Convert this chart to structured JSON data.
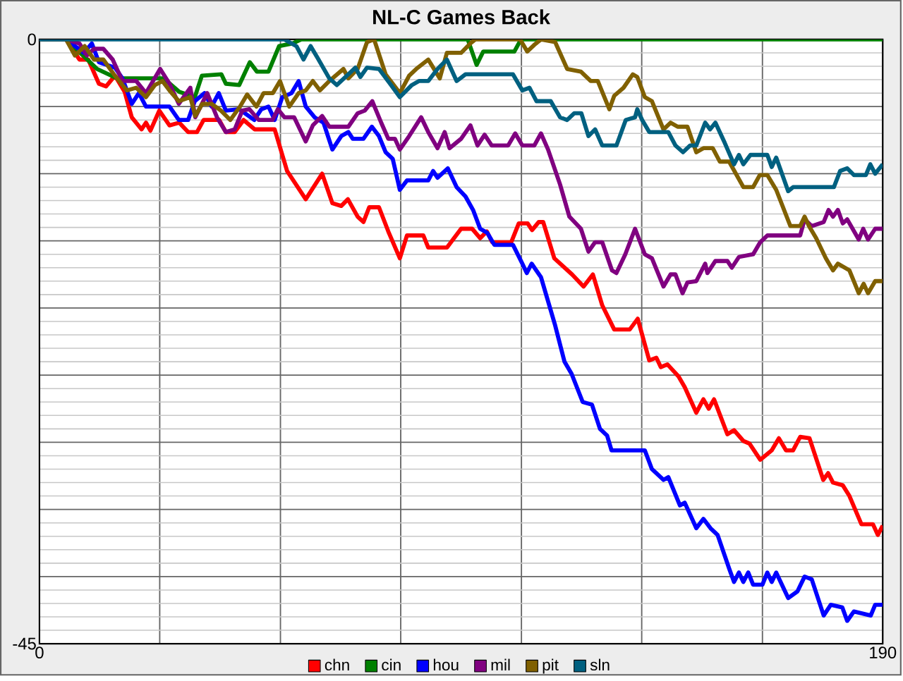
{
  "chart_data": {
    "type": "line",
    "title": "NL-C Games Back",
    "xlim": [
      0,
      190
    ],
    "ylim": [
      -45,
      0
    ],
    "xticks": [
      0,
      {
        "value": 27.1,
        "label": null
      },
      {
        "value": 54.3,
        "label": null
      },
      {
        "value": 81.4,
        "label": null
      },
      {
        "value": 108.6,
        "label": null
      },
      {
        "value": 135.7,
        "label": null
      },
      {
        "value": 162.9,
        "label": null
      },
      190
    ],
    "yticks": [
      -45,
      {
        "value": -40,
        "label": null
      },
      {
        "value": -35,
        "label": null
      },
      {
        "value": -30,
        "label": null
      },
      {
        "value": -25,
        "label": null
      },
      {
        "value": -20,
        "label": null
      },
      {
        "value": -15,
        "label": null
      },
      {
        "value": -10,
        "label": null
      },
      {
        "value": -5,
        "label": null
      },
      0
    ],
    "grid": true,
    "legend": "bottom",
    "series": [
      {
        "name": "chn",
        "color": "#ff0000",
        "x": [
          0,
          6,
          9,
          11,
          13.4,
          15,
          17,
          19.2,
          20.8,
          23,
          24,
          25,
          27,
          29.3,
          31.5,
          33.5,
          35.5,
          37,
          40.5,
          42,
          44,
          46,
          48.5,
          53,
          55.8,
          60,
          63.7,
          66,
          68,
          69.5,
          71.7,
          73,
          74.3,
          76.5,
          78.6,
          81.2,
          82.8,
          86.5,
          87.6,
          91.8,
          95,
          97.5,
          99.3,
          100.8,
          102,
          106.3,
          108,
          110,
          111,
          112.5,
          113.5,
          116,
          120,
          122.6,
          124.7,
          126.8,
          129.5,
          133,
          134.8,
          137.4,
          139,
          140,
          141.5,
          144,
          145.4,
          148,
          149.6,
          150.8,
          152,
          155,
          156.5,
          158.6,
          160,
          162.4,
          165,
          166.6,
          168.2,
          169.8,
          171.4,
          173.5,
          176.6,
          177.7,
          178.8,
          181,
          182.5,
          185.2,
          187.8,
          188.9,
          190
        ],
        "values": [
          0,
          0,
          -1.5,
          -1.5,
          -3.3,
          -3.5,
          -2.7,
          -3.9,
          -5.8,
          -6.7,
          -6.2,
          -6.8,
          -5.3,
          -6.4,
          -6.2,
          -6.9,
          -6.9,
          -6,
          -6,
          -6.9,
          -6.9,
          -6,
          -6.7,
          -6.7,
          -9.8,
          -11.9,
          -10,
          -12.2,
          -12.4,
          -11.9,
          -13.2,
          -13.6,
          -12.5,
          -12.5,
          -14.3,
          -16.3,
          -14.6,
          -14.6,
          -15.5,
          -15.5,
          -14.1,
          -14.1,
          -14.8,
          -14.3,
          -15.1,
          -15.1,
          -13.7,
          -13.7,
          -14.2,
          -13.6,
          -13.6,
          -16.3,
          -17.5,
          -18.4,
          -17.5,
          -19.8,
          -21.6,
          -21.6,
          -20.8,
          -23.9,
          -23.7,
          -24.4,
          -24.2,
          -25.1,
          -25.9,
          -27.8,
          -26.8,
          -27.5,
          -26.8,
          -29.4,
          -29.1,
          -29.9,
          -30.1,
          -31.3,
          -30.6,
          -29.7,
          -30.6,
          -30.6,
          -29.6,
          -29.7,
          -32.8,
          -32.3,
          -33,
          -33.2,
          -34,
          -36.1,
          -36.1,
          -36.9,
          -36.2
        ]
      },
      {
        "name": "cin",
        "color": "#008000",
        "x": [
          0,
          6,
          13,
          17.5,
          28,
          31.5,
          35,
          36.6,
          41,
          42,
          45,
          47.4,
          49,
          51.6,
          54,
          57,
          59,
          96.5,
          98.5,
          100,
          107,
          108.5,
          190
        ],
        "values": [
          0,
          0,
          -2.2,
          -2.9,
          -2.9,
          -3.9,
          -4.3,
          -2.7,
          -2.6,
          -3.3,
          -3.4,
          -1.7,
          -2.4,
          -2.4,
          -0.5,
          -0.3,
          0,
          0,
          -1.9,
          -0.9,
          -0.9,
          0,
          0
        ]
      },
      {
        "name": "hou",
        "color": "#0000ff",
        "x": [
          0,
          6,
          10,
          11.8,
          13.4,
          17,
          18.7,
          20.8,
          22.4,
          24,
          29.3,
          31.4,
          33.5,
          35,
          37.2,
          38.8,
          40.4,
          42,
          45,
          48.4,
          50,
          51.6,
          53,
          54.7,
          56.8,
          58.4,
          60,
          62,
          64,
          66,
          68,
          69.6,
          70.6,
          73,
          74.9,
          76.5,
          78,
          79.6,
          81.2,
          82.8,
          87.6,
          88.7,
          89.7,
          92,
          94,
          96,
          97.7,
          99.3,
          100.9,
          102.5,
          106.7,
          108.8,
          109.8,
          110.9,
          113,
          116.2,
          118.3,
          119.9,
          122.4,
          124.5,
          126.3,
          127.9,
          128.9,
          136.4,
          138,
          140.6,
          141.7,
          144.3,
          145.4,
          148,
          149.6,
          151.2,
          152.8,
          155.4,
          156.5,
          157.6,
          158.6,
          159.7,
          160.8,
          162.9,
          164,
          165,
          166,
          168.7,
          170.8,
          172.4,
          174,
          176.7,
          178.3,
          180.9,
          182,
          183.5,
          187.3,
          188.3,
          190
        ],
        "values": [
          0,
          0,
          -1,
          -0.3,
          -1.7,
          -2.1,
          -2.9,
          -4.8,
          -4,
          -5,
          -5,
          -6,
          -6,
          -4.6,
          -4,
          -5,
          -4,
          -5.3,
          -5.2,
          -6,
          -5.2,
          -5,
          -6,
          -4.3,
          -4,
          -3.1,
          -5,
          -5.8,
          -6.2,
          -8.2,
          -7.2,
          -6.9,
          -7.4,
          -7.4,
          -6.5,
          -7.2,
          -8.4,
          -8.9,
          -11.2,
          -10.5,
          -10.5,
          -9.8,
          -10.3,
          -9.6,
          -11,
          -11.7,
          -12.7,
          -14.1,
          -14.4,
          -15.3,
          -15.3,
          -16.7,
          -17.4,
          -16.7,
          -17.7,
          -21.3,
          -24,
          -24.9,
          -27,
          -27.2,
          -29,
          -29.5,
          -30.6,
          -30.6,
          -32,
          -32.8,
          -32.6,
          -34.7,
          -34.5,
          -36.4,
          -35.7,
          -36.4,
          -36.9,
          -39.4,
          -40.4,
          -39.7,
          -40.4,
          -39.7,
          -40.6,
          -40.6,
          -39.7,
          -40.4,
          -39.7,
          -41.6,
          -41.1,
          -40,
          -40.2,
          -42.9,
          -42.1,
          -42.3,
          -43.3,
          -42.6,
          -42.9,
          -42.1,
          -42.1
        ]
      },
      {
        "name": "mil",
        "color": "#800080",
        "x": [
          0,
          6,
          9,
          10.7,
          12.3,
          14.4,
          16.5,
          18.7,
          21.8,
          24,
          27.2,
          29.3,
          31.4,
          34,
          35.1,
          37.8,
          40,
          42,
          44,
          45.7,
          47.3,
          49.4,
          52.5,
          53.7,
          55.2,
          57.4,
          60,
          61.6,
          63.7,
          65.3,
          69.6,
          71.7,
          73.3,
          75,
          77,
          78.6,
          80.1,
          81.2,
          83.3,
          86,
          87.6,
          89.7,
          91.3,
          92.4,
          95,
          97.1,
          98.7,
          100.3,
          101.9,
          105.6,
          107.2,
          108.8,
          111.5,
          113,
          114.6,
          117.3,
          119.4,
          122,
          123.7,
          125.2,
          126.8,
          129,
          130,
          132,
          134.2,
          136.4,
          138,
          140.6,
          142.2,
          143.3,
          144.9,
          146,
          148,
          150,
          150.5,
          152.3,
          155,
          156,
          157.6,
          160.8,
          162.4,
          164,
          171.4,
          172.4,
          174,
          176.7,
          177.8,
          178.8,
          179.9,
          181,
          182,
          184.6,
          185.6,
          186.7,
          188.3,
          190
        ],
        "values": [
          0,
          0,
          -0.3,
          -1.2,
          -0.7,
          -0.7,
          -1.5,
          -3.1,
          -3.1,
          -4,
          -2.2,
          -3.3,
          -4.8,
          -3.6,
          -5.8,
          -4,
          -5.8,
          -6.9,
          -6.7,
          -5.3,
          -5.2,
          -6,
          -6,
          -5.2,
          -5.8,
          -5.8,
          -7.6,
          -6.4,
          -5.7,
          -6.5,
          -6.5,
          -5.5,
          -5.3,
          -4.6,
          -6.2,
          -7.4,
          -7.4,
          -8.2,
          -7.2,
          -5.8,
          -6.9,
          -8.1,
          -6.9,
          -8.1,
          -7.4,
          -6.4,
          -7.9,
          -7.1,
          -7.9,
          -7.9,
          -7,
          -7.9,
          -7.9,
          -7,
          -8.2,
          -10.8,
          -13.2,
          -14.1,
          -15.8,
          -15.1,
          -15.1,
          -17.2,
          -17.4,
          -16,
          -14.1,
          -16,
          -16.3,
          -18.4,
          -17.5,
          -17.5,
          -18.9,
          -18.1,
          -18,
          -16.7,
          -17.4,
          -16.5,
          -16.5,
          -17,
          -16.2,
          -16,
          -15.1,
          -14.6,
          -14.6,
          -13.4,
          -13.9,
          -13.6,
          -12.7,
          -13.2,
          -12.7,
          -13.7,
          -13.4,
          -14.9,
          -14.1,
          -14.9,
          -14.1,
          -14.1
        ]
      },
      {
        "name": "pit",
        "color": "#806000",
        "x": [
          0,
          6,
          8,
          10.2,
          12.3,
          14.4,
          17,
          19.7,
          21.8,
          24,
          26,
          27.7,
          29.3,
          31.4,
          34,
          35.1,
          36.7,
          38.8,
          40.9,
          43,
          45.2,
          46.8,
          48.9,
          50.5,
          52.6,
          54.2,
          56.3,
          58.4,
          60,
          61.6,
          63.2,
          65.3,
          68.5,
          69.6,
          71.7,
          73.8,
          75.4,
          78,
          81.2,
          83.3,
          84.9,
          87.6,
          90.2,
          91.8,
          95,
          97.1,
          98.2,
          108.3,
          109.9,
          111.5,
          113,
          116.2,
          118.9,
          122,
          124.2,
          125.8,
          128.4,
          129.5,
          131.6,
          133.7,
          134.7,
          136.4,
          138,
          140.6,
          142.2,
          143.8,
          146,
          148,
          149.6,
          151.7,
          153.3,
          155.4,
          158.6,
          160.8,
          162.3,
          164,
          166,
          169.2,
          171.4,
          172.4,
          173.4,
          175,
          177.2,
          178.8,
          179.9,
          182.5,
          184.6,
          185.7,
          186.7,
          188.3,
          190
        ],
        "values": [
          0,
          0,
          -1.2,
          -0.5,
          -1.5,
          -1.5,
          -2.7,
          -3.8,
          -3.6,
          -4.3,
          -3.4,
          -3.1,
          -3.8,
          -4.6,
          -4.3,
          -5.7,
          -4.8,
          -4.8,
          -5.3,
          -6,
          -5,
          -4.1,
          -5,
          -4,
          -4,
          -3.1,
          -5,
          -4,
          -3.8,
          -3.1,
          -3.8,
          -3.1,
          -2.2,
          -2.9,
          -2.2,
          -0.2,
          0,
          -2.6,
          -4,
          -2.7,
          -2.2,
          -1.5,
          -2.9,
          -1,
          -1,
          -0.3,
          0,
          0,
          -0.9,
          -0.4,
          0,
          -0.2,
          -2.2,
          -2.4,
          -3.1,
          -3.1,
          -5.2,
          -4.2,
          -3.6,
          -2.6,
          -2.8,
          -4.3,
          -4.6,
          -6.7,
          -6.2,
          -6.5,
          -6.5,
          -8.4,
          -8.1,
          -8.1,
          -9.1,
          -9.1,
          -11,
          -11,
          -10.1,
          -10.1,
          -11.2,
          -13.9,
          -13.9,
          -13.2,
          -13.9,
          -14.8,
          -16.3,
          -17.2,
          -16.7,
          -17.2,
          -18.9,
          -18.2,
          -18.9,
          -18,
          -18
        ]
      },
      {
        "name": "sln",
        "color": "#006080",
        "x": [
          0,
          55.2,
          57.9,
          59.5,
          61.1,
          62.7,
          65.3,
          67,
          69.6,
          71.2,
          72.3,
          73.8,
          76.5,
          79,
          81.2,
          83.9,
          85.5,
          87.6,
          89.7,
          91.8,
          94,
          96,
          106.7,
          108.8,
          110.4,
          112,
          115.2,
          117.3,
          118.9,
          120.5,
          122.1,
          123.7,
          125.2,
          126.8,
          128.4,
          130,
          132.1,
          134.2,
          134.7,
          135.8,
          137.4,
          141.7,
          143.3,
          145,
          146.6,
          148,
          150,
          151.1,
          152.3,
          154.4,
          156.5,
          157.6,
          158.6,
          160.2,
          164,
          165,
          166,
          168.7,
          169.8,
          179,
          180.4,
          182,
          183.5,
          186.2,
          187.2,
          188.3,
          190
        ],
        "values": [
          0,
          0,
          -0.5,
          -1.5,
          -0.5,
          -1.4,
          -2.9,
          -3.4,
          -2.6,
          -2.1,
          -2.8,
          -2.1,
          -2.2,
          -3.3,
          -4.3,
          -3.4,
          -3.1,
          -3.1,
          -2.2,
          -1.5,
          -3.1,
          -2.6,
          -2.6,
          -3.8,
          -3.6,
          -4.6,
          -4.6,
          -5.8,
          -6,
          -5.5,
          -5.5,
          -7.2,
          -6.7,
          -7.9,
          -7.9,
          -7.9,
          -6,
          -5.8,
          -5.2,
          -6,
          -6.9,
          -6.9,
          -7.9,
          -8.4,
          -7.9,
          -7.9,
          -6.2,
          -6.7,
          -6.2,
          -7.7,
          -9.3,
          -8.6,
          -9.3,
          -8.6,
          -8.6,
          -9.5,
          -8.8,
          -11.3,
          -11,
          -11,
          -9.8,
          -9.6,
          -10.1,
          -10.1,
          -9.3,
          -10,
          -9.3
        ]
      }
    ]
  }
}
